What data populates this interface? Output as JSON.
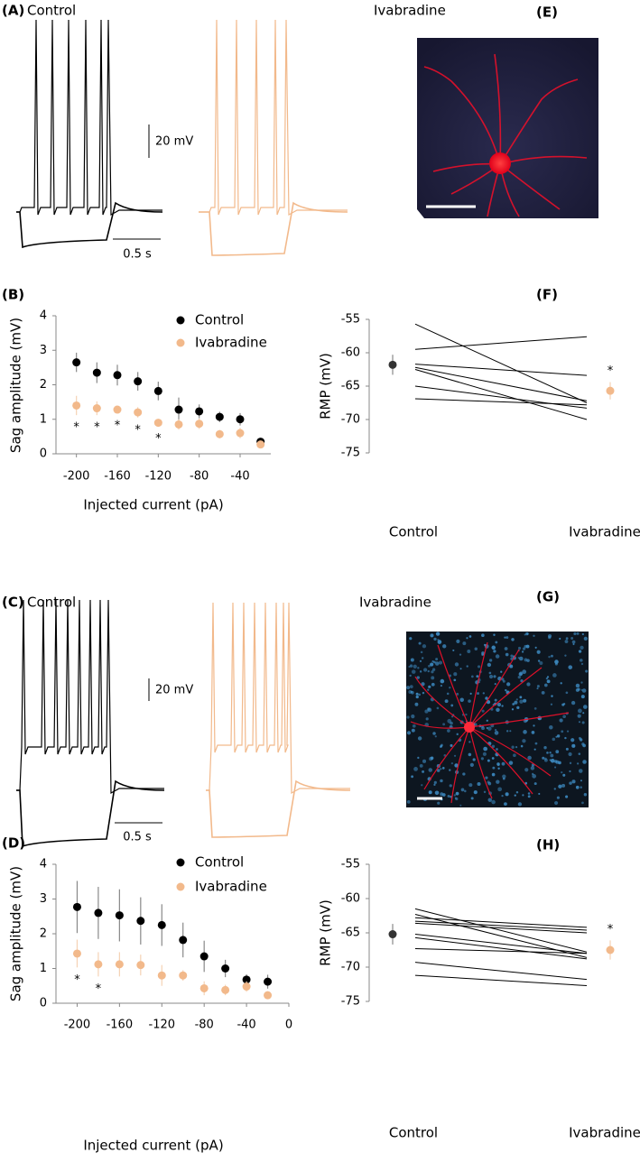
{
  "chart_data": [
    {
      "type": "trace",
      "panel": "(A)",
      "labels": [
        "Control",
        "Ivabradine"
      ],
      "colors": [
        "#000000",
        "#f2b98b"
      ],
      "scale_y": "20 mV",
      "scale_x": "0.5 s"
    },
    {
      "type": "image",
      "panel": "(E)"
    },
    {
      "type": "scatter",
      "panel": "(B)",
      "xlabel": "Injected current (pA)",
      "ylabel": "Sag amplitude (mV)",
      "xlim": [
        -220,
        -10
      ],
      "ylim": [
        0,
        4
      ],
      "xticks": [
        -200,
        -160,
        -120,
        -80,
        -40
      ],
      "yticks": [
        0,
        1,
        2,
        3,
        4
      ],
      "x": [
        -200,
        -180,
        -160,
        -140,
        -120,
        -100,
        -80,
        -60,
        -40,
        -20
      ],
      "series": [
        {
          "name": "Control",
          "color": "#000000",
          "values": [
            2.65,
            2.35,
            2.28,
            2.1,
            1.82,
            1.28,
            1.23,
            1.07,
            1.0,
            0.35
          ],
          "errors": [
            0.28,
            0.3,
            0.3,
            0.27,
            0.27,
            0.35,
            0.2,
            0.15,
            0.18,
            0.05
          ]
        },
        {
          "name": "Ivabradine",
          "color": "#f2b98b",
          "values": [
            1.4,
            1.32,
            1.28,
            1.2,
            0.9,
            0.85,
            0.87,
            0.57,
            0.6,
            0.27
          ],
          "errors": [
            0.28,
            0.2,
            0.1,
            0.15,
            0.1,
            0.15,
            0.15,
            0.12,
            0.15,
            0.05
          ]
        }
      ],
      "annotations": [
        {
          "text": "*",
          "x": -200
        },
        {
          "text": "*",
          "x": -180
        },
        {
          "text": "*",
          "x": -160
        },
        {
          "text": "*",
          "x": -140
        },
        {
          "text": "*",
          "x": -120
        }
      ]
    },
    {
      "type": "paired",
      "panel": "(F)",
      "ylabel": "RMP (mV)",
      "categories": [
        "Control",
        "Ivabradine"
      ],
      "colors": [
        "#333333",
        "#f2b98b"
      ],
      "ylim": [
        -75,
        -55
      ],
      "yticks": [
        -55,
        -60,
        -65,
        -70,
        -75
      ],
      "means": [
        -61.8,
        -65.7
      ],
      "errors": [
        1.5,
        1.3
      ],
      "pairs": [
        [
          -55.7,
          -67.5
        ],
        [
          -59.5,
          -57.6
        ],
        [
          -61.7,
          -63.4
        ],
        [
          -62.2,
          -67.2
        ],
        [
          -62.5,
          -70.0
        ],
        [
          -65.0,
          -68.3
        ],
        [
          -66.9,
          -67.8
        ]
      ],
      "annotations": [
        {
          "text": "*",
          "category": 1
        }
      ]
    },
    {
      "type": "trace",
      "panel": "(C)",
      "labels": [
        "Control",
        "Ivabradine"
      ],
      "colors": [
        "#000000",
        "#f2b98b"
      ],
      "scale_y": "20 mV",
      "scale_x": "0.5 s"
    },
    {
      "type": "image",
      "panel": "(G)"
    },
    {
      "type": "scatter",
      "panel": "(D)",
      "xlabel": "Injected current (pA)",
      "ylabel": "Sag amplitude (mV)",
      "xlim": [
        -220,
        0
      ],
      "ylim": [
        0,
        4
      ],
      "xticks": [
        -200,
        -160,
        -120,
        -80,
        -40,
        0
      ],
      "yticks": [
        0,
        1,
        2,
        3,
        4
      ],
      "x": [
        -200,
        -180,
        -160,
        -140,
        -120,
        -100,
        -80,
        -60,
        -40,
        -20
      ],
      "series": [
        {
          "name": "Control",
          "color": "#000000",
          "values": [
            2.77,
            2.6,
            2.53,
            2.37,
            2.25,
            1.82,
            1.35,
            1.0,
            0.68,
            0.62
          ],
          "errors": [
            0.75,
            0.75,
            0.75,
            0.68,
            0.6,
            0.5,
            0.45,
            0.25,
            0.15,
            0.2
          ]
        },
        {
          "name": "Ivabradine",
          "color": "#f2b98b",
          "values": [
            1.43,
            1.12,
            1.12,
            1.1,
            0.8,
            0.8,
            0.43,
            0.38,
            0.48,
            0.23
          ],
          "errors": [
            0.4,
            0.35,
            0.35,
            0.3,
            0.3,
            0.15,
            0.2,
            0.15,
            0.15,
            0.05
          ]
        }
      ],
      "annotations": [
        {
          "text": "*",
          "x": -200
        },
        {
          "text": "*",
          "x": -180
        }
      ]
    },
    {
      "type": "paired",
      "panel": "(H)",
      "ylabel": "RMP (mV)",
      "categories": [
        "Control",
        "Ivabradine"
      ],
      "colors": [
        "#333333",
        "#f2b98b"
      ],
      "ylim": [
        -75,
        -55
      ],
      "yticks": [
        -55,
        -60,
        -65,
        -70,
        -75
      ],
      "means": [
        -65.2,
        -67.5
      ],
      "errors": [
        1.5,
        1.4
      ],
      "pairs": [
        [
          -61.5,
          -67.8
        ],
        [
          -62.3,
          -68.6
        ],
        [
          -62.8,
          -64.2
        ],
        [
          -63.3,
          -64.6
        ],
        [
          -63.6,
          -65.0
        ],
        [
          -65.2,
          -68.0
        ],
        [
          -65.7,
          -68.8
        ],
        [
          -67.3,
          -68.0
        ],
        [
          -69.3,
          -71.8
        ],
        [
          -71.2,
          -72.7
        ]
      ],
      "annotations": [
        {
          "text": "*",
          "category": 1
        }
      ]
    }
  ]
}
